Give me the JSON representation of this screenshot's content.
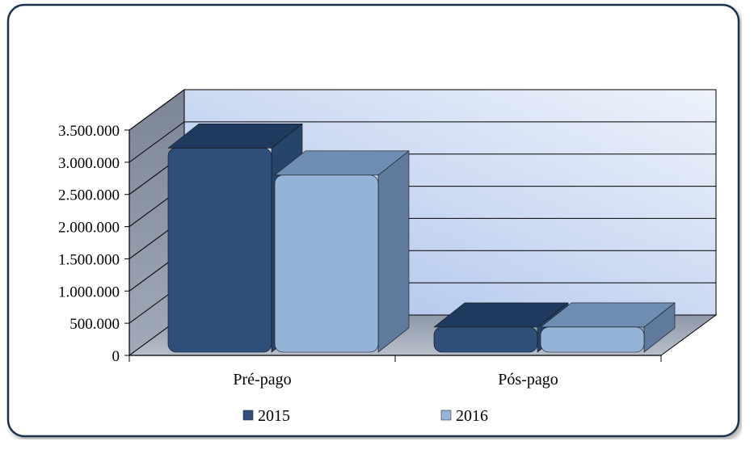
{
  "chart_data": {
    "type": "bar",
    "style": "3d-clustered-column",
    "title": "",
    "xlabel": "",
    "ylabel": "",
    "categories": [
      "Pré-pago",
      "Pós-pago"
    ],
    "series": [
      {
        "name": "2015",
        "values": [
          3220000,
          440000
        ]
      },
      {
        "name": "2016",
        "values": [
          2800000,
          440000
        ]
      }
    ],
    "ylim": [
      0,
      3500000
    ],
    "ytick_values": [
      0,
      500000,
      1000000,
      1500000,
      2000000,
      2500000,
      3000000,
      3500000
    ],
    "ytick_labels": [
      "0",
      "500.000",
      "1.000.000",
      "1.500.000",
      "2.000.000",
      "2.500.000",
      "3.000.000",
      "3.500.000"
    ],
    "grid": true,
    "legend_position": "bottom",
    "colors": {
      "series_2015": "#2f4f7a",
      "series_2016": "#95b3d7",
      "frame_border": "#1f3350",
      "wall": "#d9e4f5",
      "side_wall": "#8a96a8",
      "floor": "#a3adbb"
    }
  }
}
